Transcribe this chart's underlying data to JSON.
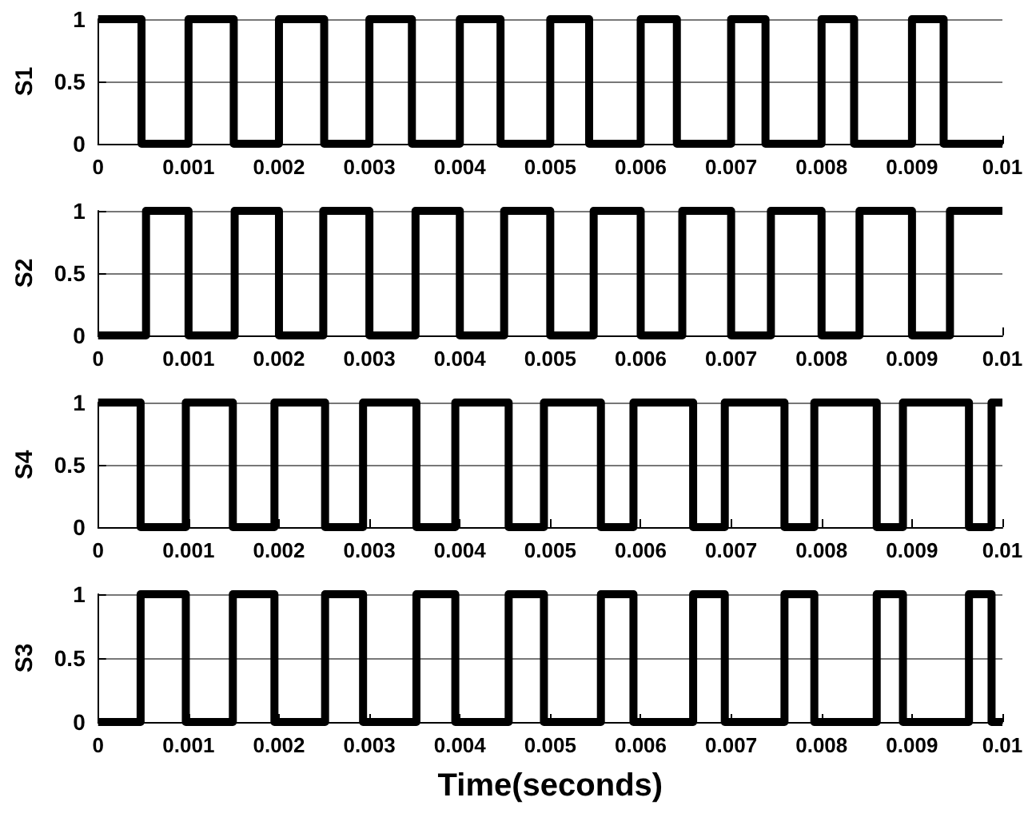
{
  "chart_data": [
    {
      "type": "step",
      "ylabel": "S1",
      "xlim": [
        0,
        0.01
      ],
      "ylim": [
        0,
        1
      ],
      "xticks": [
        0,
        0.001,
        0.002,
        0.003,
        0.004,
        0.005,
        0.006,
        0.007,
        0.008,
        0.009,
        0.01
      ],
      "yticks": [
        0,
        0.5,
        1
      ],
      "grid": "y",
      "x": [
        0,
        0.00048,
        0.001,
        0.0015,
        0.002,
        0.0025,
        0.003,
        0.00347,
        0.004,
        0.00445,
        0.005,
        0.00543,
        0.006,
        0.0064,
        0.007,
        0.00738,
        0.008,
        0.00836,
        0.009,
        0.00935,
        0.01
      ],
      "series": [
        {
          "color": "#000000",
          "values": [
            1,
            0,
            1,
            0,
            1,
            0,
            1,
            0,
            1,
            0,
            1,
            0,
            1,
            0,
            1,
            0,
            1,
            0,
            1,
            0,
            0
          ]
        }
      ]
    },
    {
      "type": "step",
      "ylabel": "S2",
      "xlim": [
        0,
        0.01
      ],
      "ylim": [
        0,
        1
      ],
      "xticks": [
        0,
        0.001,
        0.002,
        0.003,
        0.004,
        0.005,
        0.006,
        0.007,
        0.008,
        0.009,
        0.01
      ],
      "yticks": [
        0,
        0.5,
        1
      ],
      "grid": "y",
      "x": [
        0,
        0.00053,
        0.001,
        0.00151,
        0.002,
        0.00249,
        0.003,
        0.00351,
        0.004,
        0.00449,
        0.005,
        0.00548,
        0.006,
        0.00646,
        0.007,
        0.00744,
        0.008,
        0.00842,
        0.009,
        0.00942,
        0.01
      ],
      "series": [
        {
          "color": "#000000",
          "values": [
            0,
            1,
            0,
            1,
            0,
            1,
            0,
            1,
            0,
            1,
            0,
            1,
            0,
            1,
            0,
            1,
            0,
            1,
            0,
            1,
            1
          ]
        }
      ]
    },
    {
      "type": "step",
      "ylabel": "S4",
      "xlim": [
        0,
        0.01
      ],
      "ylim": [
        0,
        1
      ],
      "xticks": [
        0,
        0.001,
        0.002,
        0.003,
        0.004,
        0.005,
        0.006,
        0.007,
        0.008,
        0.009,
        0.01
      ],
      "yticks": [
        0,
        0.5,
        1
      ],
      "grid": "y",
      "x": [
        0,
        0.00047,
        0.00097,
        0.00149,
        0.00195,
        0.00251,
        0.00293,
        0.00352,
        0.00395,
        0.00454,
        0.00493,
        0.00556,
        0.00592,
        0.00658,
        0.00693,
        0.00759,
        0.00792,
        0.00861,
        0.0089,
        0.00963,
        0.00988,
        0.01
      ],
      "series": [
        {
          "color": "#000000",
          "values": [
            1,
            0,
            1,
            0,
            1,
            0,
            1,
            0,
            1,
            0,
            1,
            0,
            1,
            0,
            1,
            0,
            1,
            0,
            1,
            0,
            1,
            1
          ]
        }
      ]
    },
    {
      "type": "step",
      "ylabel": "S3",
      "xlabel": "Time(seconds)",
      "xlim": [
        0,
        0.01
      ],
      "ylim": [
        0,
        1
      ],
      "xticks": [
        0,
        0.001,
        0.002,
        0.003,
        0.004,
        0.005,
        0.006,
        0.007,
        0.008,
        0.009,
        0.01
      ],
      "yticks": [
        0,
        0.5,
        1
      ],
      "grid": "y",
      "x": [
        0,
        0.00047,
        0.00097,
        0.00149,
        0.00195,
        0.00251,
        0.00293,
        0.00352,
        0.00395,
        0.00454,
        0.00493,
        0.00556,
        0.00592,
        0.00658,
        0.00693,
        0.00759,
        0.00792,
        0.00861,
        0.0089,
        0.00963,
        0.00988,
        0.01
      ],
      "series": [
        {
          "color": "#000000",
          "values": [
            0,
            1,
            0,
            1,
            0,
            1,
            0,
            1,
            0,
            1,
            0,
            1,
            0,
            1,
            0,
            1,
            0,
            1,
            0,
            1,
            0,
            0
          ]
        }
      ]
    }
  ]
}
